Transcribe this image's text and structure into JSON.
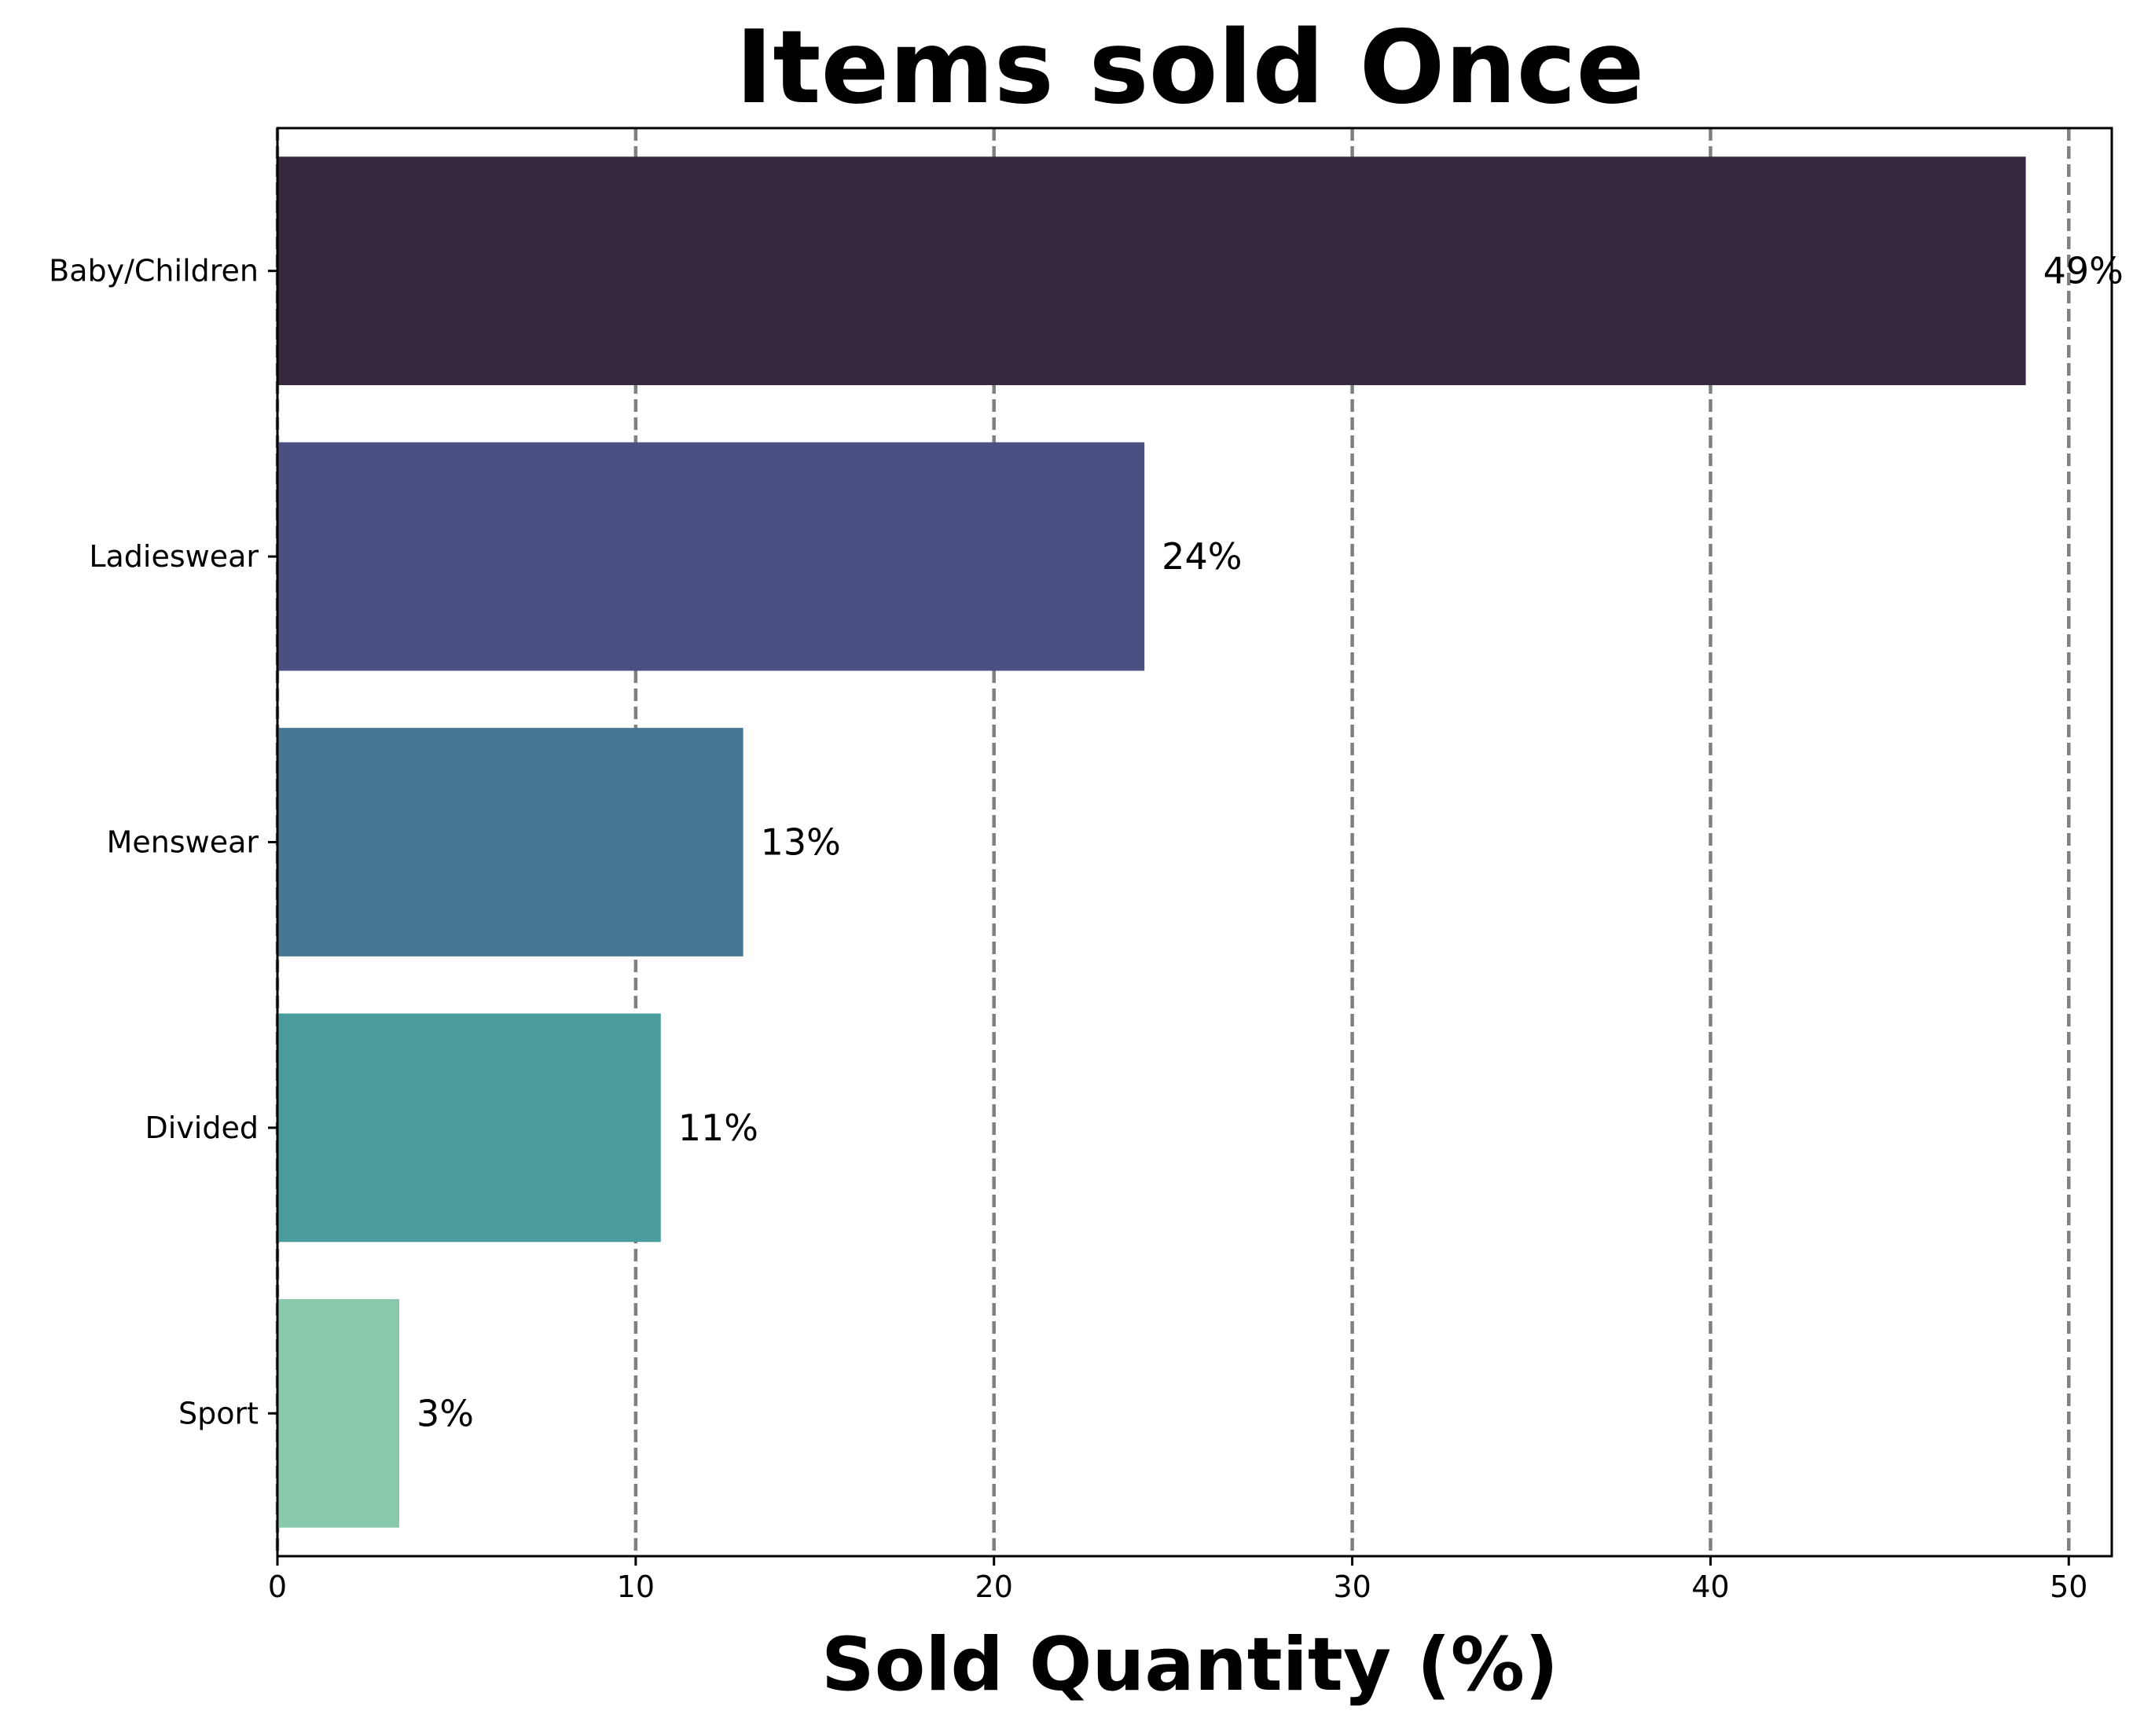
{
  "chart_data": {
    "type": "bar",
    "orientation": "horizontal",
    "title": "Items sold Once",
    "xlabel": "Sold Quantity (%)",
    "ylabel": "",
    "categories": [
      "Baby/Children",
      "Ladieswear",
      "Menswear",
      "Divided",
      "Sport"
    ],
    "values": [
      48.8,
      24.2,
      13.0,
      10.7,
      3.4
    ],
    "data_labels": [
      "49%",
      "24%",
      "13%",
      "11%",
      "3%"
    ],
    "colors": [
      "#35283f",
      "#4a5081",
      "#457795",
      "#4a9c9d",
      "#87c9aa"
    ],
    "xlim": [
      0,
      51.2
    ],
    "xticks": [
      0,
      10,
      20,
      30,
      40,
      50
    ],
    "grid": "vertical dashed",
    "grid_color": "#808080"
  }
}
